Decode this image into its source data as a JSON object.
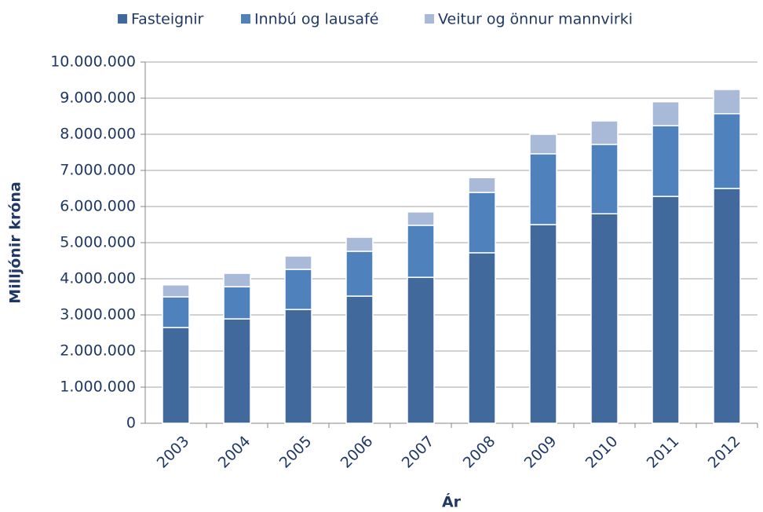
{
  "chart_data": {
    "type": "stacked_bar",
    "y_label": "Milljónir króna",
    "x_label": "Ár",
    "categories": [
      "2003",
      "2004",
      "2005",
      "2006",
      "2007",
      "2008",
      "2009",
      "2010",
      "2011",
      "2012"
    ],
    "series": [
      {
        "name": "Fasteignir",
        "color": "#41699c",
        "values": [
          2650000,
          2890000,
          3150000,
          3520000,
          4040000,
          4720000,
          5500000,
          5800000,
          6280000,
          6500000
        ]
      },
      {
        "name": "Innbú og lausafé",
        "color": "#4f81bd",
        "values": [
          850000,
          890000,
          1110000,
          1240000,
          1440000,
          1670000,
          1960000,
          1920000,
          1960000,
          2070000
        ]
      },
      {
        "name": "Veitur og önnur mannvirki",
        "color": "#a9b9d8",
        "values": [
          330000,
          370000,
          370000,
          390000,
          370000,
          410000,
          540000,
          650000,
          660000,
          670000
        ]
      }
    ],
    "ylim": [
      0,
      10000000
    ],
    "yticks": [
      0,
      {
        "value": 1000000,
        "label": "1.000.000"
      },
      {
        "value": 2000000,
        "label": "2.000.000"
      },
      {
        "value": 3000000,
        "label": "3.000.000"
      },
      {
        "value": 4000000,
        "label": "4.000.000"
      },
      {
        "value": 5000000,
        "label": "5.000.000"
      },
      {
        "value": 6000000,
        "label": "6.000.000"
      },
      {
        "value": 7000000,
        "label": "7.000.000"
      },
      {
        "value": 8000000,
        "label": "8.000.000"
      },
      {
        "value": 9000000,
        "label": "9.000.000"
      },
      {
        "value": 10000000,
        "label": "10.000.000"
      }
    ],
    "grid": true,
    "legend": "top"
  }
}
